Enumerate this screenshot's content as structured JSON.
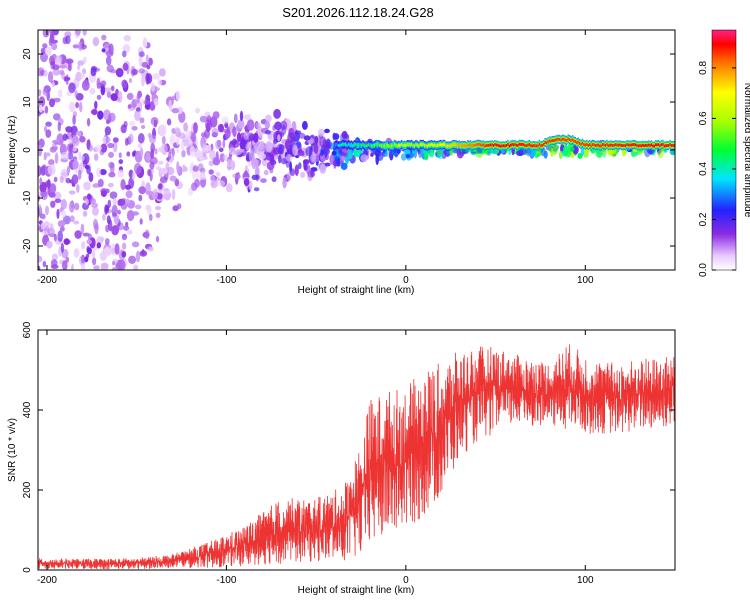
{
  "figure": {
    "title": "S201.2026.112.18.24.G28"
  },
  "chart_data": [
    {
      "type": "heatmap",
      "name": "spectrogram",
      "xlabel": "Height of straight line (km)",
      "ylabel": "Frequency (Hz)",
      "xlim": [
        -205,
        150
      ],
      "ylim": [
        -25,
        25
      ],
      "xticks": [
        -200,
        -100,
        0,
        100
      ],
      "yticks": [
        -20,
        -10,
        0,
        10,
        20
      ],
      "colorbar": {
        "label": "Normalized spectral amplitude",
        "range": [
          0,
          0.95
        ],
        "ticks": [
          0.0,
          0.2,
          0.4,
          0.6,
          0.8
        ]
      },
      "description_points": [
        {
          "x": -200,
          "freq_spread": 25,
          "amp": 0.15
        },
        {
          "x": -150,
          "freq_spread": 25,
          "amp": 0.15
        },
        {
          "x": -120,
          "freq_spread": 10,
          "amp": 0.1
        },
        {
          "x": -100,
          "freq_spread": 10,
          "amp": 0.15
        },
        {
          "x": -50,
          "freq_spread": 6,
          "amp": 0.2
        },
        {
          "x": -30,
          "freq_spread": 3,
          "amp": 0.35
        },
        {
          "x": 0,
          "freq_spread": 1.5,
          "amp": 0.6
        },
        {
          "x": 50,
          "freq_spread": 1,
          "amp": 0.95
        },
        {
          "x": 90,
          "freq_spread": 1.5,
          "amp": 0.9
        },
        {
          "x": 150,
          "freq_spread": 1,
          "amp": 0.95
        }
      ],
      "line_frequency_hz": 1
    },
    {
      "type": "line",
      "name": "snr",
      "xlabel": "Height of straight line (km)",
      "ylabel": "SNR (10 * v/v)",
      "xlim": [
        -205,
        150
      ],
      "ylim": [
        0,
        600
      ],
      "xticks": [
        -200,
        -100,
        0,
        100
      ],
      "yticks": [
        0,
        200,
        400,
        600
      ],
      "color": "#ee3333",
      "envelope": {
        "x": [
          -205,
          -180,
          -150,
          -130,
          -110,
          -90,
          -70,
          -50,
          -35,
          -25,
          -20,
          -10,
          0,
          10,
          20,
          30,
          40,
          50,
          60,
          70,
          80,
          90,
          100,
          110,
          120,
          130,
          140,
          150
        ],
        "low": [
          2,
          2,
          2,
          5,
          5,
          10,
          15,
          20,
          20,
          30,
          60,
          80,
          100,
          130,
          180,
          280,
          320,
          340,
          360,
          360,
          360,
          350,
          340,
          340,
          340,
          350,
          350,
          360
        ],
        "high": [
          30,
          28,
          30,
          40,
          70,
          110,
          180,
          180,
          210,
          320,
          430,
          450,
          460,
          500,
          520,
          550,
          560,
          560,
          540,
          530,
          520,
          570,
          540,
          520,
          520,
          530,
          530,
          540
        ]
      }
    }
  ]
}
